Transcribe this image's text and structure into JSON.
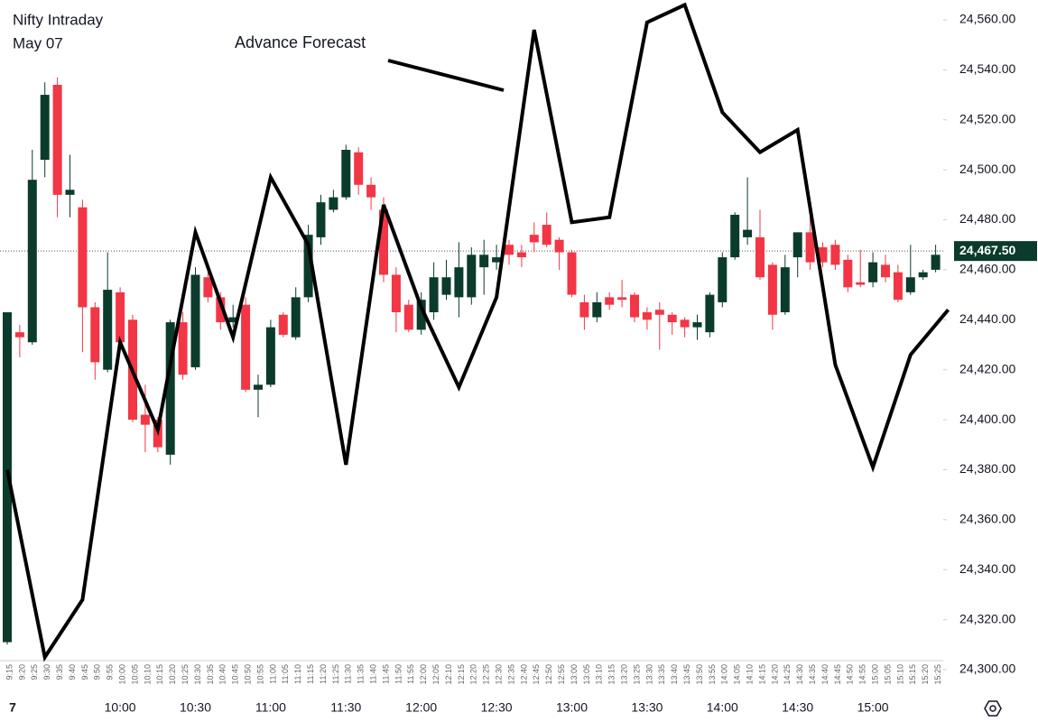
{
  "chart_data": {
    "type": "candlestick",
    "title": "Nifty Intraday",
    "subtitle": "May 07",
    "annotation": "Advance Forecast",
    "categories": [
      "9:15",
      "9:20",
      "9:25",
      "9:30",
      "9:35",
      "9:40",
      "9:45",
      "9:50",
      "9:55",
      "10:00",
      "10:05",
      "10:10",
      "10:15",
      "10:20",
      "10:25",
      "10:30",
      "10:35",
      "10:40",
      "10:45",
      "10:50",
      "10:55",
      "11:00",
      "11:05",
      "11:10",
      "11:15",
      "11:20",
      "11:25",
      "11:30",
      "11:35",
      "11:40",
      "11:45",
      "11:50",
      "11:55",
      "12:00",
      "12:05",
      "12:10",
      "12:15",
      "12:20",
      "12:25",
      "12:30",
      "12:35",
      "12:40",
      "12:45",
      "12:50",
      "12:55",
      "13:00",
      "13:05",
      "13:10",
      "13:15",
      "13:20",
      "13:25",
      "13:30",
      "13:35",
      "13:40",
      "13:45",
      "13:50",
      "13:55",
      "14:00",
      "14:05",
      "14:10",
      "14:15",
      "14:20",
      "14:25",
      "14:30",
      "14:35",
      "14:40",
      "14:45",
      "14:50",
      "14:55",
      "15:00",
      "15:05",
      "15:10",
      "15:15",
      "15:20",
      "15:25"
    ],
    "major_labels": [
      "7",
      "10:00",
      "10:30",
      "11:00",
      "11:30",
      "12:00",
      "12:30",
      "13:00",
      "13:30",
      "14:00",
      "14:30",
      "15:00"
    ],
    "open": [
      24311,
      24435,
      24431,
      24504,
      24534,
      24490,
      24485,
      24445,
      24420,
      24451,
      24440,
      24402,
      24400,
      24386,
      24439,
      24421,
      24457,
      24449,
      24439,
      24446,
      24412,
      24414,
      24442,
      24433,
      24449,
      24473,
      24484,
      24489,
      24507,
      24494,
      24484,
      24458,
      24446,
      24436,
      24443,
      24450,
      24449,
      24449,
      24461,
      24463,
      24470,
      24467,
      24474,
      24478,
      24472,
      24467,
      24447,
      24441,
      24449,
      24449,
      24450,
      24443,
      24444,
      24442,
      24440,
      24437,
      24435,
      24447,
      24465,
      24473,
      24473,
      24462,
      24443,
      24465,
      24475,
      24469,
      24470,
      24464,
      24455,
      24455,
      24462,
      24459,
      24451,
      24457,
      24460
    ],
    "high": [
      24443,
      24438,
      24508,
      24535,
      24537,
      24506,
      24488,
      24447,
      24467,
      24453,
      24442,
      24414,
      24401,
      24440,
      24443,
      24461,
      24460,
      24451,
      24446,
      24449,
      24418,
      24440,
      24443,
      24453,
      24478,
      24490,
      24492,
      24510,
      24509,
      24497,
      24489,
      24461,
      24448,
      24451,
      24463,
      24464,
      24471,
      24469,
      24472,
      24470,
      24472,
      24470,
      24479,
      24483,
      24473,
      24468,
      24450,
      24451,
      24451,
      24456,
      24451,
      24445,
      24447,
      24443,
      24441,
      24442,
      24451,
      24467,
      24483,
      24497,
      24484,
      24463,
      24466,
      24475,
      24484,
      24471,
      24472,
      24466,
      24468,
      24467,
      24466,
      24462,
      24470,
      24460,
      24470
    ],
    "low": [
      24310,
      24425,
      24430,
      24497,
      24481,
      24481,
      24427,
      24416,
      24419,
      24427,
      24399,
      24387,
      24387,
      24382,
      24416,
      24420,
      24447,
      24436,
      24437,
      24411,
      24401,
      24413,
      24433,
      24432,
      24447,
      24470,
      24483,
      24488,
      24490,
      24484,
      24455,
      24435,
      24435,
      24434,
      24440,
      24448,
      24441,
      24446,
      24450,
      24460,
      24462,
      24461,
      24467,
      24469,
      24460,
      24449,
      24436,
      24439,
      24444,
      24445,
      24439,
      24436,
      24428,
      24434,
      24433,
      24432,
      24433,
      24445,
      24464,
      24470,
      24456,
      24436,
      24442,
      24457,
      24460,
      24461,
      24460,
      24451,
      24453,
      24453,
      24455,
      24447,
      24450,
      24456,
      24459
    ],
    "close": [
      24443,
      24433,
      24496,
      24530,
      24490,
      24492,
      24445,
      24423,
      24452,
      24431,
      24400,
      24398,
      24389,
      24439,
      24418,
      24458,
      24449,
      24439,
      24441,
      24412,
      24414,
      24437,
      24434,
      24449,
      24474,
      24487,
      24489,
      24508,
      24494,
      24489,
      24458,
      24443,
      24436,
      24448,
      24457,
      24457,
      24461,
      24466,
      24466,
      24465,
      24466,
      24465,
      24471,
      24470,
      24467,
      24450,
      24441,
      24447,
      24446,
      24448,
      24441,
      24440,
      24442,
      24439,
      24437,
      24439,
      24450,
      24465,
      24482,
      24476,
      24457,
      24442,
      24461,
      24475,
      24463,
      24463,
      24462,
      24453,
      24454,
      24463,
      24457,
      24448,
      24457,
      24459,
      24466
    ],
    "up_color": "#0b3b2c",
    "down_color": "#f23645",
    "forecast": {
      "color": "#000000",
      "x": [
        "9:15",
        "9:30",
        "9:45",
        "10:00",
        "10:15",
        "10:30",
        "10:45",
        "11:00",
        "11:15",
        "11:30",
        "11:45",
        "12:00",
        "12:15",
        "12:30",
        "12:45",
        "13:00",
        "13:15",
        "13:30",
        "13:45",
        "14:00",
        "14:15",
        "14:30",
        "14:45",
        "15:00",
        "15:15",
        "15:30"
      ],
      "values": [
        24380,
        24305,
        24328,
        24431,
        24396,
        24475,
        24433,
        24497,
        24470,
        24382,
        24486,
        24445,
        24413,
        24449,
        24556,
        24479,
        24481,
        24559,
        24566,
        24523,
        24507,
        24516,
        24422,
        24381,
        24426,
        24444
      ]
    },
    "last_price": {
      "value": 24467.5,
      "label": "24,467.50"
    },
    "ylim": [
      24300,
      24560
    ],
    "yticks": [
      {
        "value": 24300,
        "label": "24,300.00"
      },
      {
        "value": 24320,
        "label": "24,320.00"
      },
      {
        "value": 24340,
        "label": "24,340.00"
      },
      {
        "value": 24360,
        "label": "24,360.00"
      },
      {
        "value": 24380,
        "label": "24,380.00"
      },
      {
        "value": 24400,
        "label": "24,400.00"
      },
      {
        "value": 24420,
        "label": "24,420.00"
      },
      {
        "value": 24440,
        "label": "24,440.00"
      },
      {
        "value": 24460,
        "label": "24,460.00"
      },
      {
        "value": 24480,
        "label": "24,480.00"
      },
      {
        "value": 24500,
        "label": "24,500.00"
      },
      {
        "value": 24520,
        "label": "24,520.00"
      },
      {
        "value": 24540,
        "label": "24,540.00"
      },
      {
        "value": 24560,
        "label": "24,560.00"
      }
    ],
    "grid": false
  }
}
